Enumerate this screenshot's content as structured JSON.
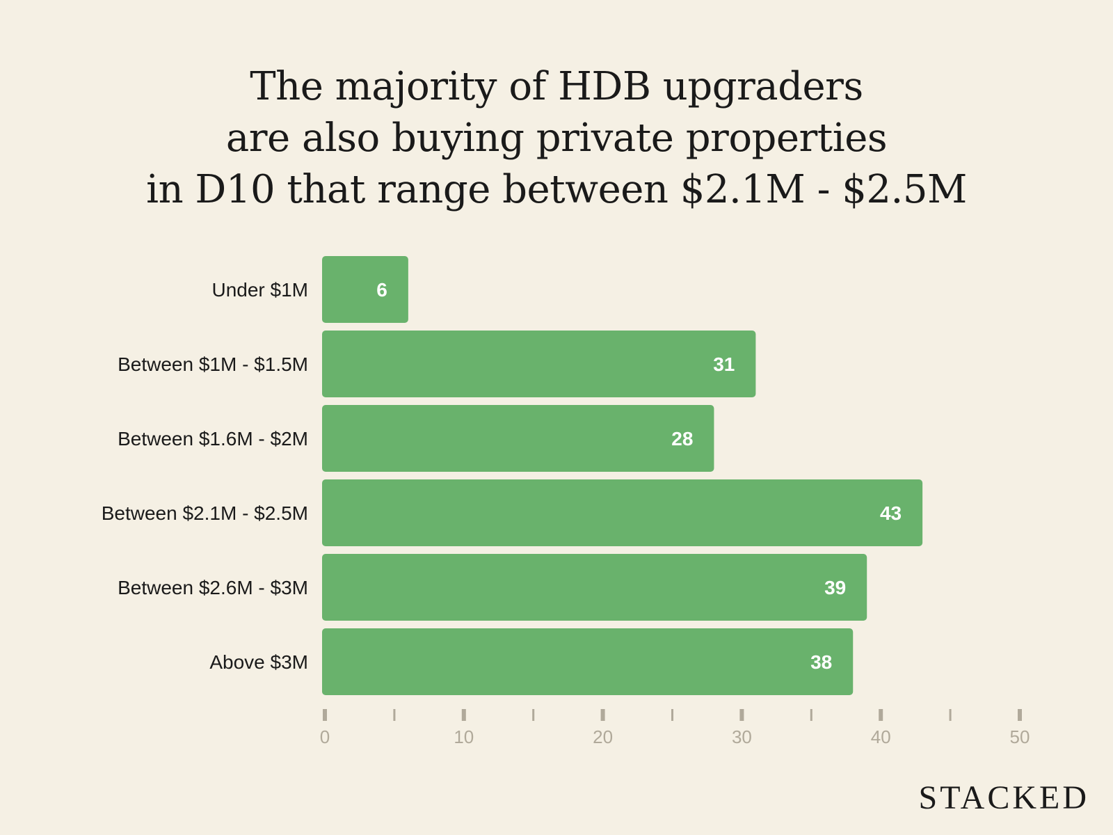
{
  "title_lines": [
    "The majority of HDB upgraders",
    "are also buying private properties",
    "in D10 that range between $2.1M - $2.5M"
  ],
  "brand": "STACKED",
  "colors": {
    "background": "#f5f0e4",
    "bar": "#69b26c",
    "axis": "#b0a99a",
    "text": "#1a1a1a",
    "value_text": "#ffffff"
  },
  "chart_data": {
    "type": "bar",
    "orientation": "horizontal",
    "title": "The majority of HDB upgraders are also buying private properties in D10 that range between $2.1M - $2.5M",
    "categories": [
      "Under $1M",
      "Between $1M - $1.5M",
      "Between $1.6M - $2M",
      "Between $2.1M - $2.5M",
      "Between $2.6M - $3M",
      "Above $3M"
    ],
    "values": [
      6,
      31,
      28,
      43,
      39,
      38
    ],
    "value_labels": [
      "6",
      "31",
      "28",
      "43",
      "39",
      "38"
    ],
    "xlim": [
      0,
      50
    ],
    "major_ticks": [
      0,
      10,
      20,
      30,
      40,
      50
    ],
    "tick_labels": [
      "0",
      "10",
      "20",
      "30",
      "40",
      "50"
    ],
    "minor_ticks": [
      5,
      15,
      25,
      35,
      45
    ],
    "grid": false,
    "legend": "none",
    "xlabel": "",
    "ylabel": ""
  }
}
